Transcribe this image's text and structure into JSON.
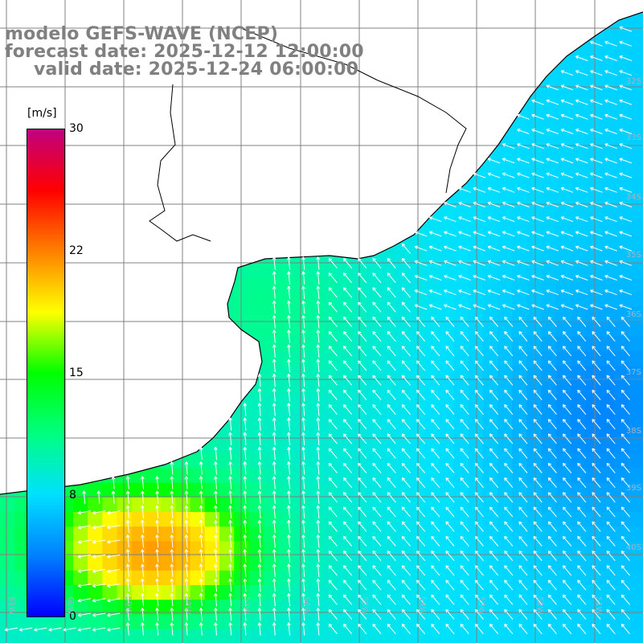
{
  "header": {
    "model_line": "modelo GEFS-WAVE (NCEP)",
    "forecast_line": "forecast date: 2025-12-12 12:00:00",
    "valid_line": "valid date: 2025-12-24 06:00:00"
  },
  "colorbar": {
    "unit": "[m/s]",
    "ticks": [
      "30",
      "22",
      "15",
      "8",
      "0"
    ],
    "range": [
      0,
      30
    ],
    "colors": [
      "#0000ff",
      "#0080ff",
      "#00e0ff",
      "#00ff80",
      "#00ff00",
      "#ffff00",
      "#ff8000",
      "#ff0000",
      "#c00080"
    ]
  },
  "map": {
    "variable": "wind speed and direction",
    "land_color": "#ffffff",
    "coastline_color": "#000000",
    "grid_color": "#808080",
    "vector_color": "#ffffff",
    "lat_labels": [
      "32S",
      "33S",
      "34S",
      "35S",
      "36S",
      "37S",
      "38S",
      "39S",
      "40S"
    ],
    "lon_labels": [
      "61W",
      "60W",
      "59W",
      "58W",
      "57W",
      "56W",
      "55W",
      "54W",
      "53W",
      "52W",
      "51W"
    ]
  }
}
